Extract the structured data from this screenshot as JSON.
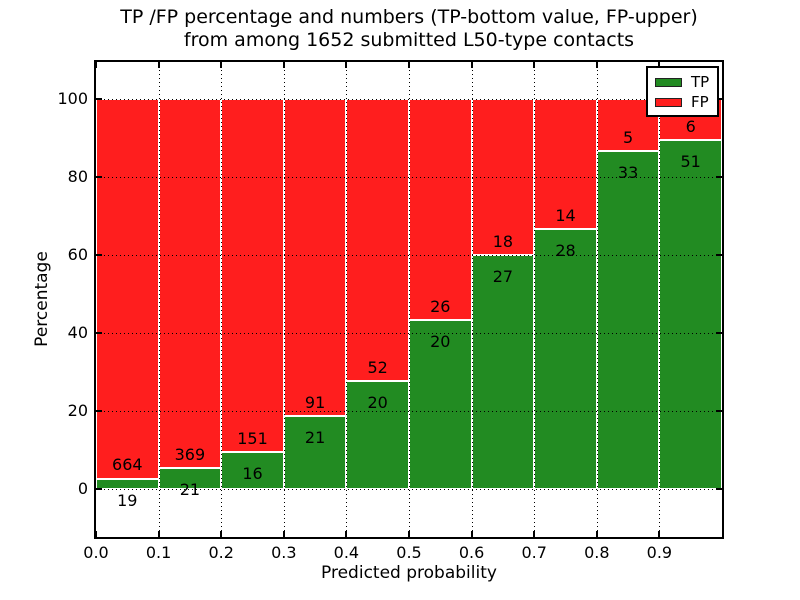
{
  "chart_data": {
    "type": "bar",
    "stacked": true,
    "title_line1": "TP /FP percentage and numbers (TP-bottom value, FP-upper)",
    "title_line2": "from among 1652 submitted L50-type contacts",
    "xlabel": "Predicted probability",
    "ylabel": "Percentage",
    "total_submitted": 1652,
    "xlim": [
      0,
      1
    ],
    "ylim": [
      -12.2,
      109.6
    ],
    "bin_width": 0.1,
    "bin_starts": [
      0.0,
      0.1,
      0.2,
      0.3,
      0.4,
      0.5,
      0.6,
      0.7,
      0.8,
      0.9
    ],
    "categories": [
      "0.0-0.1",
      "0.1-0.2",
      "0.2-0.3",
      "0.3-0.4",
      "0.4-0.5",
      "0.5-0.6",
      "0.6-0.7",
      "0.7-0.8",
      "0.8-0.9",
      "0.9-1.0"
    ],
    "series": [
      {
        "name": "TP",
        "color": "#228b22",
        "counts": [
          19,
          21,
          16,
          21,
          20,
          20,
          27,
          28,
          33,
          51
        ]
      },
      {
        "name": "FP",
        "color": "#ff1e1e",
        "counts": [
          664,
          369,
          151,
          91,
          52,
          26,
          18,
          14,
          5,
          6
        ]
      }
    ],
    "tp_percent": [
      2.8,
      5.4,
      9.6,
      18.8,
      27.8,
      43.5,
      60.0,
      66.7,
      86.8,
      89.5
    ],
    "percent_rule": "green segment height = TP/(TP+FP)*100, red stacked up to 100",
    "annotation_rule": "FP count printed above TP/FP boundary, TP count printed below it",
    "grid": "dotted black lines at all major ticks",
    "xticks": [
      {
        "value": 0.0,
        "label": "0.0"
      },
      {
        "value": 0.1,
        "label": "0.1"
      },
      {
        "value": 0.2,
        "label": "0.2"
      },
      {
        "value": 0.3,
        "label": "0.3"
      },
      {
        "value": 0.4,
        "label": "0.4"
      },
      {
        "value": 0.5,
        "label": "0.5"
      },
      {
        "value": 0.6,
        "label": "0.6"
      },
      {
        "value": 0.7,
        "label": "0.7"
      },
      {
        "value": 0.8,
        "label": "0.8"
      },
      {
        "value": 0.9,
        "label": "0.9"
      }
    ],
    "yticks": [
      {
        "value": 0,
        "label": "0"
      },
      {
        "value": 20,
        "label": "20"
      },
      {
        "value": 40,
        "label": "40"
      },
      {
        "value": 60,
        "label": "60"
      },
      {
        "value": 80,
        "label": "80"
      },
      {
        "value": 100,
        "label": "100"
      }
    ],
    "legend": {
      "position": "upper right",
      "entries": [
        {
          "label": "TP",
          "color": "#228b22"
        },
        {
          "label": "FP",
          "color": "#ff1e1e"
        }
      ]
    }
  }
}
